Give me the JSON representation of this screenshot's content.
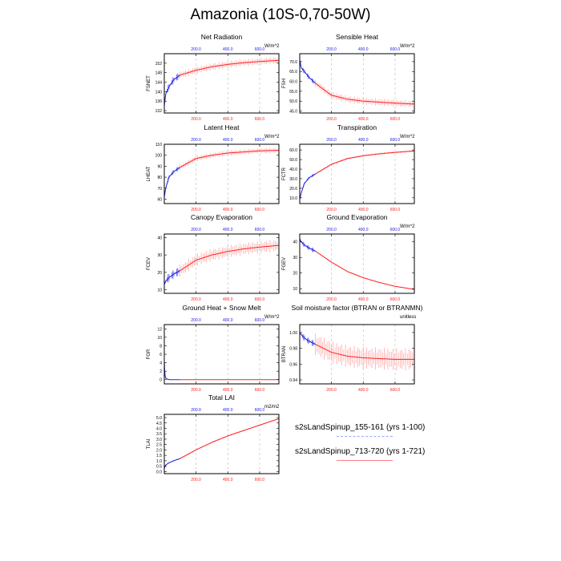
{
  "figure_title": "Amazonia (10S-0,70-50W)",
  "colors": {
    "run1": "#2020e0",
    "run2": "#ff2020",
    "top_axis": "#2020e0",
    "bottom_axis": "#ff2020"
  },
  "legend": [
    {
      "label": "s2sLandSpinup_155-161 (yrs 1-100)",
      "color": "#9aa8ff",
      "style": "dashed"
    },
    {
      "label": "s2sLandSpinup_713-720 (yrs 1-721)",
      "color": "#ff8080",
      "style": "solid"
    }
  ],
  "chart_data": [
    {
      "type": "line",
      "title": "Net Radiation",
      "ylabel": "FSNET",
      "units": "W/m^2",
      "xlim": [
        1,
        721
      ],
      "ylim": [
        131,
        156
      ],
      "yticks": [
        132,
        136,
        140,
        144,
        148,
        152
      ],
      "xticks_top": [
        200,
        400,
        600
      ],
      "xticks_top_labels": [
        "200.0",
        "400.0",
        "600.0"
      ],
      "xticks_bottom": [
        200,
        400,
        600
      ],
      "xticks_bottom_labels": [
        "200.0",
        "400.0",
        "600.0"
      ],
      "series": [
        {
          "name": "s2sLandSpinup_155-161 (yrs 1-100)",
          "x": [
            1,
            10,
            30,
            60,
            100
          ],
          "y": [
            134,
            139,
            142,
            145,
            147
          ],
          "spread": 1.5
        },
        {
          "name": "s2sLandSpinup_713-720 (yrs 1-721)",
          "x": [
            100,
            200,
            300,
            400,
            500,
            600,
            721
          ],
          "y": [
            147,
            149,
            150.5,
            151.5,
            152.2,
            152.7,
            153.2
          ],
          "spread": 1.5
        }
      ]
    },
    {
      "type": "line",
      "title": "Sensible Heat",
      "ylabel": "FSH",
      "units": "W/m^2",
      "xlim": [
        1,
        721
      ],
      "ylim": [
        44,
        74
      ],
      "yticks": [
        45,
        50,
        55,
        60,
        65,
        70
      ],
      "yticklabels": [
        "45.0",
        "50.0",
        "55.0",
        "60.0",
        "65.0",
        "70.0"
      ],
      "xticks_top": [
        200,
        400,
        600
      ],
      "xticks_top_labels": [
        "200.0",
        "400.0",
        "600.0"
      ],
      "xticks_bottom": [
        200,
        400,
        600
      ],
      "xticks_bottom_labels": [
        "200.0",
        "400.0",
        "600.0"
      ],
      "series": [
        {
          "name": "s2sLandSpinup_155-161 (yrs 1-100)",
          "x": [
            1,
            10,
            30,
            60,
            100
          ],
          "y": [
            71,
            67,
            65,
            62,
            59
          ],
          "spread": 1.2
        },
        {
          "name": "s2sLandSpinup_713-720 (yrs 1-721)",
          "x": [
            100,
            200,
            300,
            400,
            500,
            600,
            721
          ],
          "y": [
            59,
            53,
            51,
            50,
            49.5,
            49,
            48.5
          ],
          "spread": 1.8
        }
      ]
    },
    {
      "type": "line",
      "title": "Latent Heat",
      "ylabel": "LHEAT",
      "units": "W/m^2",
      "xlim": [
        1,
        721
      ],
      "ylim": [
        56,
        110
      ],
      "yticks": [
        60,
        70,
        80,
        90,
        100,
        110
      ],
      "xticks_top": [
        200,
        400,
        600
      ],
      "xticks_top_labels": [
        "200.0",
        "400.0",
        "600.0"
      ],
      "xticks_bottom": [
        200,
        400,
        600
      ],
      "xticks_bottom_labels": [
        "200.0",
        "400.0",
        "600.0"
      ],
      "series": [
        {
          "name": "s2sLandSpinup_155-161 (yrs 1-100)",
          "x": [
            1,
            10,
            30,
            60,
            100
          ],
          "y": [
            62,
            70,
            80,
            85,
            89
          ],
          "spread": 2
        },
        {
          "name": "s2sLandSpinup_713-720 (yrs 1-721)",
          "x": [
            100,
            200,
            300,
            400,
            500,
            600,
            721
          ],
          "y": [
            89,
            97,
            100,
            102,
            103,
            104,
            104.5
          ],
          "spread": 2.5
        }
      ]
    },
    {
      "type": "line",
      "title": "Transpiration",
      "ylabel": "FCTR",
      "units": "W/m^2",
      "xlim": [
        1,
        721
      ],
      "ylim": [
        4,
        66
      ],
      "yticks": [
        10,
        20,
        30,
        40,
        50,
        60
      ],
      "yticklabels": [
        "10.0",
        "20.0",
        "30.0",
        "40.0",
        "50.0",
        "60.0"
      ],
      "xticks_top": [
        200,
        400,
        600
      ],
      "xticks_top_labels": [
        "200.0",
        "400.0",
        "600.0"
      ],
      "xticks_bottom": [
        200,
        400,
        600
      ],
      "xticks_bottom_labels": [
        "200.0",
        "400.0",
        "600.0"
      ],
      "series": [
        {
          "name": "s2sLandSpinup_155-161 (yrs 1-100)",
          "x": [
            1,
            10,
            30,
            60,
            100
          ],
          "y": [
            8,
            15,
            25,
            31,
            35
          ],
          "spread": 1.5
        },
        {
          "name": "s2sLandSpinup_713-720 (yrs 1-721)",
          "x": [
            100,
            200,
            300,
            400,
            500,
            600,
            721
          ],
          "y": [
            35,
            45,
            51,
            54,
            56,
            57.5,
            59
          ],
          "spread": 1.2
        }
      ]
    },
    {
      "type": "line",
      "title": "Canopy Evaporation",
      "ylabel": "FCEV",
      "units": "",
      "xlim": [
        1,
        721
      ],
      "ylim": [
        8,
        42
      ],
      "yticks": [
        10,
        20,
        30,
        40
      ],
      "xticks_top": [
        200,
        400,
        600
      ],
      "xticks_top_labels": [
        "200.0",
        "400.0",
        "600.0"
      ],
      "xticks_bottom": [
        200,
        400,
        600
      ],
      "xticks_bottom_labels": [
        "200.0",
        "400.0",
        "600.0"
      ],
      "series": [
        {
          "name": "s2sLandSpinup_155-161 (yrs 1-100)",
          "x": [
            1,
            10,
            30,
            60,
            100
          ],
          "y": [
            13,
            15,
            17,
            19,
            21
          ],
          "spread": 2.5
        },
        {
          "name": "s2sLandSpinup_713-720 (yrs 1-721)",
          "x": [
            100,
            200,
            300,
            400,
            500,
            600,
            721
          ],
          "y": [
            21,
            27,
            30,
            32,
            33.5,
            34.5,
            35.5
          ],
          "spread": 3.5
        }
      ]
    },
    {
      "type": "line",
      "title": "Ground Evaporation",
      "ylabel": "FGEV",
      "units": "W/m^2",
      "xlim": [
        1,
        721
      ],
      "ylim": [
        7,
        45
      ],
      "yticks": [
        10,
        20,
        30,
        40
      ],
      "xticks_top": [
        200,
        400,
        600
      ],
      "xticks_top_labels": [
        "200.0",
        "400.0",
        "600.0"
      ],
      "xticks_bottom": [
        200,
        400,
        600
      ],
      "xticks_bottom_labels": [
        "200.0",
        "400.0",
        "600.0"
      ],
      "series": [
        {
          "name": "s2sLandSpinup_155-161 (yrs 1-100)",
          "x": [
            1,
            10,
            30,
            60,
            100
          ],
          "y": [
            42,
            40,
            38,
            36,
            34
          ],
          "spread": 1.5
        },
        {
          "name": "s2sLandSpinup_713-720 (yrs 1-721)",
          "x": [
            100,
            200,
            300,
            400,
            500,
            600,
            721
          ],
          "y": [
            34,
            27,
            21,
            17,
            14,
            11.5,
            9.5
          ],
          "spread": 0.4
        }
      ]
    },
    {
      "type": "line",
      "title": "Ground Heat + Snow Melt",
      "ylabel": "FGR",
      "units": "W/m^2",
      "xlim": [
        1,
        721
      ],
      "ylim": [
        -1,
        13
      ],
      "yticks": [
        0,
        2,
        4,
        6,
        8,
        10,
        12
      ],
      "xticks_top": [
        200,
        400,
        600
      ],
      "xticks_top_labels": [
        "200.0",
        "400.0",
        "600.0"
      ],
      "xticks_bottom": [
        200,
        400,
        600
      ],
      "xticks_bottom_labels": [
        "200.0",
        "400.0",
        "600.0"
      ],
      "series": [
        {
          "name": "s2sLandSpinup_155-161 (yrs 1-100)",
          "x": [
            1,
            3,
            6,
            10,
            20,
            40,
            100
          ],
          "y": [
            4.5,
            2.5,
            1,
            0.4,
            0.1,
            0,
            0
          ],
          "spread": 0
        },
        {
          "name": "s2sLandSpinup_713-720 (yrs 1-721)",
          "x": [
            100,
            721
          ],
          "y": [
            0,
            0
          ],
          "spread": 0
        }
      ]
    },
    {
      "type": "line",
      "title": "Soil moisture factor (BTRAN or BTRANMN)",
      "ylabel": "BTRAN",
      "units": "unitless",
      "xlim": [
        1,
        721
      ],
      "ylim": [
        0.935,
        1.01
      ],
      "yticks": [
        0.94,
        0.96,
        0.98,
        1.0
      ],
      "yticklabels": [
        "0.94",
        "0.96",
        "0.98",
        "1.00"
      ],
      "xticks_top": [],
      "xticks_top_labels": [],
      "xticks_bottom": [
        200,
        400,
        600
      ],
      "xticks_bottom_labels": [
        "200.0",
        "400.0",
        "600.0"
      ],
      "series": [
        {
          "name": "s2sLandSpinup_155-161 (yrs 1-100)",
          "x": [
            1,
            20,
            50,
            100
          ],
          "y": [
            1.0,
            0.995,
            0.99,
            0.985
          ],
          "spread": 0.004
        },
        {
          "name": "s2sLandSpinup_713-720 (yrs 1-721)",
          "x": [
            100,
            200,
            300,
            400,
            500,
            600,
            721
          ],
          "y": [
            0.985,
            0.975,
            0.97,
            0.968,
            0.967,
            0.966,
            0.966
          ],
          "spread": 0.014
        }
      ]
    },
    {
      "type": "line",
      "title": "Total LAI",
      "ylabel": "TLAI",
      "units": "m2/m2",
      "xlim": [
        1,
        721
      ],
      "ylim": [
        -0.2,
        5.3
      ],
      "yticks": [
        0,
        0.5,
        1,
        1.5,
        2,
        2.5,
        3,
        3.5,
        4,
        4.5,
        5
      ],
      "yticklabels": [
        "0.0",
        "0.5",
        "1.0",
        "1.5",
        "2.0",
        "2.5",
        "3.0",
        "3.5",
        "4.0",
        "4.5",
        "5.0"
      ],
      "xticks_top": [
        200,
        400,
        600
      ],
      "xticks_top_labels": [
        "200.0",
        "400.0",
        "600.0"
      ],
      "xticks_bottom": [
        200,
        400,
        600
      ],
      "xticks_bottom_labels": [
        "200.0",
        "400.0",
        "600.0"
      ],
      "series": [
        {
          "name": "s2sLandSpinup_155-161 (yrs 1-100)",
          "x": [
            1,
            10,
            30,
            60,
            100
          ],
          "y": [
            0.3,
            0.6,
            0.8,
            1.0,
            1.2
          ],
          "spread": 0.05
        },
        {
          "name": "s2sLandSpinup_713-720 (yrs 1-721)",
          "x": [
            100,
            200,
            300,
            400,
            500,
            600,
            721
          ],
          "y": [
            1.2,
            2.0,
            2.7,
            3.3,
            3.8,
            4.3,
            4.9
          ],
          "spread": 0.08
        }
      ]
    }
  ]
}
